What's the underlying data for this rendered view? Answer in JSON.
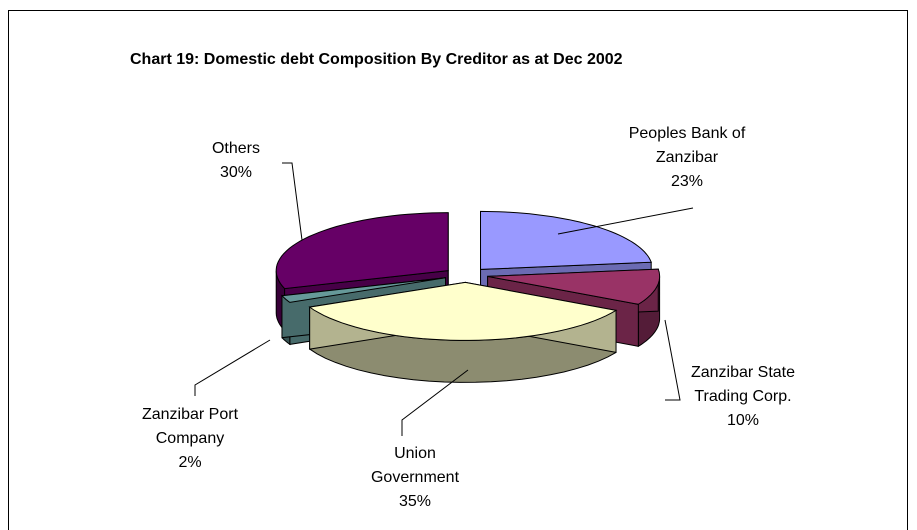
{
  "chart_data": {
    "type": "pie",
    "title": "Chart 19: Domestic debt Composition By Creditor as  at Dec 2002",
    "three_d": true,
    "exploded": true,
    "slices": [
      {
        "label_lines": [
          "Peoples Bank of",
          "Zanzibar"
        ],
        "percent_label": "23%",
        "value": 23,
        "color": "#9999ff"
      },
      {
        "label_lines": [
          "Zanzibar State",
          "Trading Corp."
        ],
        "percent_label": "10%",
        "value": 10,
        "color": "#993366"
      },
      {
        "label_lines": [
          "Union",
          "Government"
        ],
        "percent_label": "35%",
        "value": 35,
        "color": "#ffffcc"
      },
      {
        "label_lines": [
          "Zanzibar Port",
          "Company"
        ],
        "percent_label": "2%",
        "value": 2,
        "color": "#669999"
      },
      {
        "label_lines": [
          "Others"
        ],
        "percent_label": "30%",
        "value": 30,
        "color": "#660066"
      }
    ]
  }
}
